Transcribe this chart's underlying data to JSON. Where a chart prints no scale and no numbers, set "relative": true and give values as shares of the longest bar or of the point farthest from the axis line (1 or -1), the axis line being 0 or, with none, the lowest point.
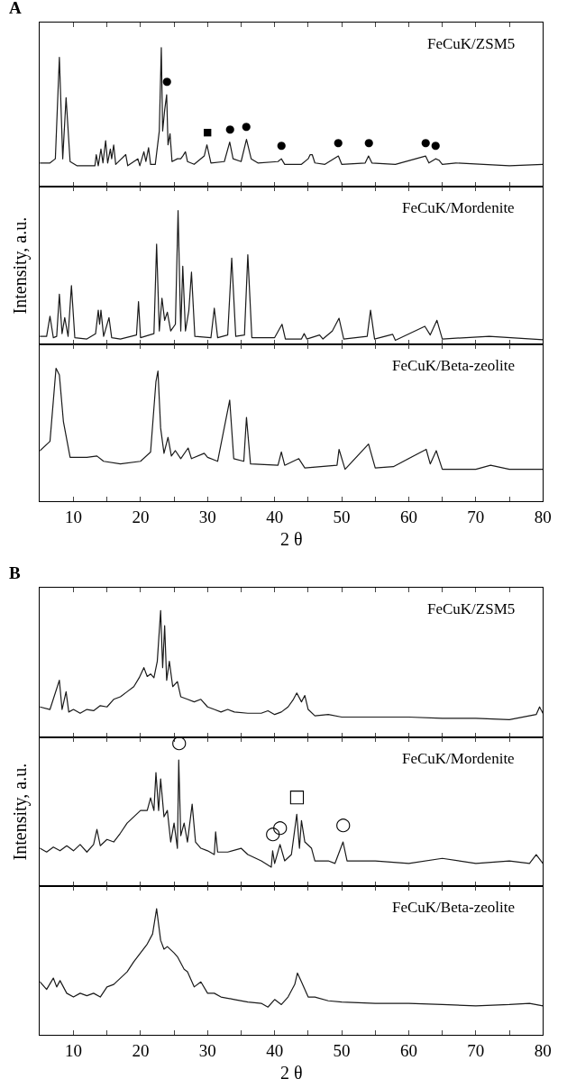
{
  "chart_data": [
    {
      "type": "line",
      "title": "A",
      "relative": true,
      "xlim": [
        5,
        80
      ],
      "xticks": [
        {
          "value": 10,
          "label": null
        },
        {
          "value": 15,
          "label": null
        },
        {
          "value": 20,
          "label": null
        },
        {
          "value": 25,
          "label": null
        },
        {
          "value": 30,
          "label": null
        },
        {
          "value": 35,
          "label": null
        },
        {
          "value": 40,
          "label": null
        },
        {
          "value": 45,
          "label": null
        },
        {
          "value": 50,
          "label": null
        },
        {
          "value": 55,
          "label": null
        },
        {
          "value": 60,
          "label": null
        },
        {
          "value": 65,
          "label": null
        },
        {
          "value": 70,
          "label": null
        },
        {
          "value": 75,
          "label": null
        }
      ],
      "tick_labels": false,
      "color": "#1a1a1a",
      "x": [
        5,
        6.5,
        7.3,
        7.9,
        8.4,
        8.9,
        9.5,
        10.5,
        12,
        13.2,
        13.4,
        13.7,
        14.1,
        14.4,
        14.8,
        15.1,
        15.5,
        15.7,
        16,
        16.3,
        17.8,
        18.1,
        19.6,
        19.9,
        20.5,
        20.8,
        21.2,
        21.5,
        22.2,
        22.8,
        23.1,
        23.3,
        23.6,
        23.9,
        24.1,
        24.4,
        24.7,
        25.5,
        26,
        26.3,
        26.7,
        27,
        28,
        29.5,
        29.9,
        30.5,
        32.5,
        33.3,
        33.8,
        35,
        35.8,
        36.5,
        37.5,
        40.5,
        41,
        41.5,
        44,
        45,
        45.3,
        45.6,
        46,
        47.5,
        49.5,
        50,
        53.5,
        54,
        54.5,
        58,
        62.5,
        63,
        64,
        64.5,
        65,
        67,
        75,
        80
      ],
      "values": [
        0.17,
        0.17,
        0.2,
        0.93,
        0.2,
        0.64,
        0.18,
        0.15,
        0.15,
        0.15,
        0.23,
        0.15,
        0.27,
        0.17,
        0.33,
        0.17,
        0.27,
        0.2,
        0.3,
        0.16,
        0.23,
        0.15,
        0.2,
        0.15,
        0.25,
        0.18,
        0.28,
        0.16,
        0.16,
        0.4,
        1.0,
        0.4,
        0.55,
        0.66,
        0.3,
        0.38,
        0.18,
        0.2,
        0.2,
        0.22,
        0.25,
        0.18,
        0.16,
        0.22,
        0.3,
        0.17,
        0.18,
        0.32,
        0.2,
        0.18,
        0.34,
        0.2,
        0.17,
        0.18,
        0.2,
        0.16,
        0.16,
        0.2,
        0.23,
        0.23,
        0.17,
        0.16,
        0.22,
        0.16,
        0.17,
        0.22,
        0.17,
        0.16,
        0.22,
        0.17,
        0.2,
        0.19,
        0.16,
        0.17,
        0.15,
        0.16
      ],
      "annotations": [
        "FeCuK/ZSM5",
        {
          "text": "●",
          "x": 23.9,
          "y": 0.66
        },
        {
          "text": "■",
          "x": 29.9,
          "y": 0.3
        },
        {
          "text": "●",
          "x": 33.3,
          "y": 0.32
        },
        {
          "text": "●",
          "x": 35.8,
          "y": 0.34
        },
        {
          "text": "●",
          "x": 41,
          "y": 0.2
        },
        {
          "text": "●",
          "x": 49.5,
          "y": 0.22
        },
        {
          "text": "●",
          "x": 54,
          "y": 0.22
        },
        {
          "text": "●",
          "x": 62.5,
          "y": 0.22
        },
        {
          "text": "●",
          "x": 64,
          "y": 0.2
        }
      ]
    },
    {
      "type": "line",
      "ylabel": "Intensity, a.u.",
      "relative": true,
      "xlim": [
        5,
        80
      ],
      "xticks": [
        {
          "value": 10,
          "label": null
        },
        {
          "value": 15,
          "label": null
        },
        {
          "value": 20,
          "label": null
        },
        {
          "value": 25,
          "label": null
        },
        {
          "value": 30,
          "label": null
        },
        {
          "value": 35,
          "label": null
        },
        {
          "value": 40,
          "label": null
        },
        {
          "value": 45,
          "label": null
        },
        {
          "value": 50,
          "label": null
        },
        {
          "value": 55,
          "label": null
        },
        {
          "value": 60,
          "label": null
        },
        {
          "value": 65,
          "label": null
        },
        {
          "value": 70,
          "label": null
        },
        {
          "value": 75,
          "label": null
        }
      ],
      "tick_labels": false,
      "color": "#1a1a1a",
      "x": [
        5,
        6,
        6.5,
        7,
        7.5,
        7.9,
        8.3,
        8.7,
        9.2,
        9.7,
        10.2,
        12,
        13.3,
        13.7,
        13.9,
        14.1,
        14.5,
        15.3,
        15.7,
        17,
        19.4,
        19.7,
        20,
        22,
        22.4,
        22.8,
        23.2,
        23.6,
        24,
        24.5,
        25.2,
        25.6,
        26,
        26.3,
        26.7,
        27.2,
        27.6,
        28.1,
        30.5,
        31,
        31.5,
        33,
        33.6,
        34.2,
        35.5,
        36,
        36.6,
        40,
        41.1,
        41.6,
        44,
        44.4,
        44.8,
        46.7,
        47.2,
        48.6,
        49.6,
        50.3,
        53.8,
        54.3,
        54.9,
        57.6,
        58,
        62.4,
        63.2,
        64.2,
        65,
        72,
        80
      ],
      "values": [
        0.06,
        0.06,
        0.21,
        0.05,
        0.06,
        0.375,
        0.08,
        0.2,
        0.06,
        0.44,
        0.05,
        0.04,
        0.08,
        0.255,
        0.15,
        0.255,
        0.06,
        0.2,
        0.05,
        0.04,
        0.07,
        0.32,
        0.05,
        0.08,
        0.75,
        0.1,
        0.345,
        0.18,
        0.24,
        0.1,
        0.15,
        1.0,
        0.1,
        0.585,
        0.1,
        0.25,
        0.54,
        0.06,
        0.05,
        0.27,
        0.05,
        0.07,
        0.645,
        0.06,
        0.07,
        0.67,
        0.05,
        0.05,
        0.15,
        0.04,
        0.04,
        0.08,
        0.04,
        0.07,
        0.04,
        0.1,
        0.195,
        0.04,
        0.06,
        0.255,
        0.04,
        0.075,
        0.03,
        0.135,
        0.07,
        0.18,
        0.04,
        0.06,
        0.035
      ],
      "annotations": [
        "FeCuK/Mordenite"
      ]
    },
    {
      "type": "line",
      "xlabel": "2 θ",
      "relative": true,
      "xlim": [
        5,
        80
      ],
      "xticks": [
        10,
        {
          "value": 15,
          "label": null
        },
        20,
        {
          "value": 25,
          "label": null
        },
        30,
        {
          "value": 35,
          "label": null
        },
        40,
        {
          "value": 45,
          "label": null
        },
        50,
        {
          "value": 55,
          "label": null
        },
        60,
        {
          "value": 65,
          "label": null
        },
        70,
        {
          "value": 75,
          "label": null
        },
        80
      ],
      "tick_labels": "x",
      "color": "#1a1a1a",
      "x": [
        5,
        6.5,
        7.4,
        7.9,
        8.5,
        9.5,
        12,
        13.5,
        14.5,
        17,
        20,
        21.5,
        22.3,
        22.6,
        23,
        23.5,
        24.1,
        24.6,
        25.2,
        26,
        27.1,
        27.6,
        29.5,
        30,
        31.5,
        33.3,
        33.9,
        35.4,
        35.8,
        36.4,
        40.5,
        41.0,
        41.5,
        43.6,
        44.5,
        49.3,
        49.6,
        50.5,
        54.0,
        55,
        57.7,
        62.6,
        63.2,
        64.1,
        65,
        70,
        72.2,
        75,
        80
      ],
      "values": [
        0.38,
        0.45,
        1.0,
        0.95,
        0.6,
        0.33,
        0.33,
        0.34,
        0.3,
        0.28,
        0.3,
        0.37,
        0.9,
        0.98,
        0.55,
        0.36,
        0.48,
        0.34,
        0.38,
        0.32,
        0.4,
        0.32,
        0.36,
        0.33,
        0.3,
        0.76,
        0.32,
        0.3,
        0.63,
        0.28,
        0.27,
        0.37,
        0.27,
        0.32,
        0.25,
        0.27,
        0.39,
        0.24,
        0.43,
        0.25,
        0.26,
        0.39,
        0.28,
        0.38,
        0.24,
        0.24,
        0.27,
        0.24,
        0.24
      ],
      "annotations": [
        "FeCuK/Beta-zeolite"
      ]
    },
    {
      "type": "line",
      "title": "B",
      "relative": true,
      "xlim": [
        5,
        80
      ],
      "xticks": [
        {
          "value": 10,
          "label": null
        },
        {
          "value": 15,
          "label": null
        },
        {
          "value": 20,
          "label": null
        },
        {
          "value": 25,
          "label": null
        },
        {
          "value": 30,
          "label": null
        },
        {
          "value": 35,
          "label": null
        },
        {
          "value": 40,
          "label": null
        },
        {
          "value": 45,
          "label": null
        },
        {
          "value": 50,
          "label": null
        },
        {
          "value": 55,
          "label": null
        },
        {
          "value": 60,
          "label": null
        },
        {
          "value": 65,
          "label": null
        },
        {
          "value": 70,
          "label": null
        },
        {
          "value": 75,
          "label": null
        }
      ],
      "tick_labels": false,
      "color": "#1a1a1a",
      "x": [
        5,
        6.5,
        7.9,
        8.3,
        8.9,
        9.3,
        10,
        11,
        12,
        13,
        14,
        15,
        16,
        17,
        18,
        19,
        19.8,
        20.5,
        21,
        21.5,
        22,
        22.5,
        23,
        23.3,
        23.6,
        23.9,
        24.3,
        24.8,
        25.5,
        26,
        27,
        28,
        29,
        30,
        31,
        32,
        33,
        34,
        36,
        38,
        39,
        40,
        41,
        42,
        42.8,
        43.3,
        44,
        44.5,
        45,
        46,
        48,
        50,
        55,
        60,
        65,
        70,
        75,
        79,
        79.5,
        80
      ],
      "values": [
        0.24,
        0.22,
        0.45,
        0.22,
        0.36,
        0.2,
        0.22,
        0.19,
        0.22,
        0.21,
        0.25,
        0.24,
        0.3,
        0.32,
        0.36,
        0.4,
        0.47,
        0.55,
        0.48,
        0.5,
        0.47,
        0.6,
        1.0,
        0.55,
        0.88,
        0.45,
        0.6,
        0.4,
        0.44,
        0.32,
        0.3,
        0.28,
        0.3,
        0.24,
        0.22,
        0.2,
        0.22,
        0.2,
        0.19,
        0.19,
        0.21,
        0.18,
        0.2,
        0.24,
        0.3,
        0.35,
        0.28,
        0.33,
        0.22,
        0.17,
        0.18,
        0.16,
        0.16,
        0.16,
        0.15,
        0.15,
        0.14,
        0.18,
        0.24,
        0.19
      ],
      "annotations": [
        "FeCuK/ZSM5"
      ]
    },
    {
      "type": "line",
      "ylabel": "Intensity, a.u.",
      "relative": true,
      "xlim": [
        5,
        80
      ],
      "xticks": [
        {
          "value": 10,
          "label": null
        },
        {
          "value": 15,
          "label": null
        },
        {
          "value": 20,
          "label": null
        },
        {
          "value": 25,
          "label": null
        },
        {
          "value": 30,
          "label": null
        },
        {
          "value": 35,
          "label": null
        },
        {
          "value": 40,
          "label": null
        },
        {
          "value": 45,
          "label": null
        },
        {
          "value": 50,
          "label": null
        },
        {
          "value": 55,
          "label": null
        },
        {
          "value": 60,
          "label": null
        },
        {
          "value": 65,
          "label": null
        },
        {
          "value": 70,
          "label": null
        },
        {
          "value": 75,
          "label": null
        }
      ],
      "tick_labels": false,
      "color": "#1a1a1a",
      "x": [
        5,
        6,
        7,
        8,
        9,
        10,
        11,
        12,
        13,
        13.5,
        14,
        15,
        16,
        17,
        18,
        19,
        20,
        21,
        21.5,
        22,
        22.3,
        22.7,
        23,
        23.5,
        24,
        24.5,
        25,
        25.5,
        25.7,
        26,
        26.5,
        27,
        27.7,
        28.2,
        29,
        30,
        31,
        31.2,
        31.5,
        33,
        35,
        36,
        38,
        39.5,
        39.7,
        40,
        40.8,
        41.5,
        42.5,
        43.3,
        43.7,
        44,
        44.5,
        45.5,
        46,
        48,
        49,
        50.2,
        50.8,
        55,
        60,
        65,
        70,
        75,
        78,
        79,
        80
      ],
      "values": [
        0.3,
        0.27,
        0.31,
        0.28,
        0.32,
        0.28,
        0.33,
        0.27,
        0.33,
        0.45,
        0.32,
        0.37,
        0.35,
        0.42,
        0.5,
        0.55,
        0.6,
        0.6,
        0.7,
        0.6,
        0.9,
        0.6,
        0.85,
        0.55,
        0.6,
        0.35,
        0.5,
        0.3,
        1.0,
        0.4,
        0.5,
        0.35,
        0.65,
        0.35,
        0.3,
        0.28,
        0.25,
        0.43,
        0.27,
        0.27,
        0.3,
        0.25,
        0.2,
        0.15,
        0.28,
        0.18,
        0.33,
        0.2,
        0.25,
        0.57,
        0.3,
        0.52,
        0.35,
        0.3,
        0.2,
        0.2,
        0.18,
        0.35,
        0.2,
        0.2,
        0.18,
        0.22,
        0.18,
        0.2,
        0.18,
        0.25,
        0.18
      ],
      "annotations": [
        "FeCuK/Mordenite",
        {
          "text": "○",
          "x": 25.7,
          "y": 1.0
        },
        {
          "text": "○",
          "x": 39.7,
          "y": 0.28
        },
        {
          "text": "○",
          "x": 40.8,
          "y": 0.33
        },
        {
          "text": "□",
          "x": 43.3,
          "y": 0.57
        },
        {
          "text": "○",
          "x": 50.2,
          "y": 0.35
        }
      ]
    },
    {
      "type": "line",
      "xlabel": "2 θ",
      "relative": true,
      "xlim": [
        5,
        80
      ],
      "xticks": [
        10,
        {
          "value": 15,
          "label": null
        },
        20,
        {
          "value": 25,
          "label": null
        },
        30,
        {
          "value": 35,
          "label": null
        },
        40,
        {
          "value": 45,
          "label": null
        },
        50,
        {
          "value": 55,
          "label": null
        },
        60,
        {
          "value": 65,
          "label": null
        },
        70,
        {
          "value": 75,
          "label": null
        },
        80
      ],
      "tick_labels": "x",
      "color": "#1a1a1a",
      "x": [
        5,
        6,
        7,
        7.5,
        8,
        9,
        10,
        11,
        12,
        13,
        14,
        15,
        16,
        17,
        18,
        19,
        20,
        21,
        21.8,
        22.4,
        23,
        23.5,
        24,
        25,
        25.5,
        26.5,
        27,
        28,
        29,
        30,
        31,
        32,
        34,
        36,
        38,
        39,
        40,
        41,
        42,
        43,
        43.4,
        44,
        45,
        46,
        48,
        50,
        55,
        60,
        65,
        70,
        75,
        78,
        80
      ],
      "values": [
        0.42,
        0.36,
        0.45,
        0.38,
        0.43,
        0.33,
        0.3,
        0.33,
        0.31,
        0.33,
        0.3,
        0.38,
        0.4,
        0.45,
        0.5,
        0.58,
        0.65,
        0.72,
        0.8,
        1.0,
        0.75,
        0.68,
        0.7,
        0.65,
        0.62,
        0.52,
        0.5,
        0.38,
        0.42,
        0.33,
        0.33,
        0.3,
        0.28,
        0.26,
        0.25,
        0.22,
        0.28,
        0.24,
        0.3,
        0.4,
        0.49,
        0.42,
        0.3,
        0.3,
        0.27,
        0.26,
        0.25,
        0.25,
        0.24,
        0.23,
        0.24,
        0.25,
        0.23
      ],
      "annotations": [
        "FeCuK/Beta-zeolite"
      ]
    }
  ]
}
